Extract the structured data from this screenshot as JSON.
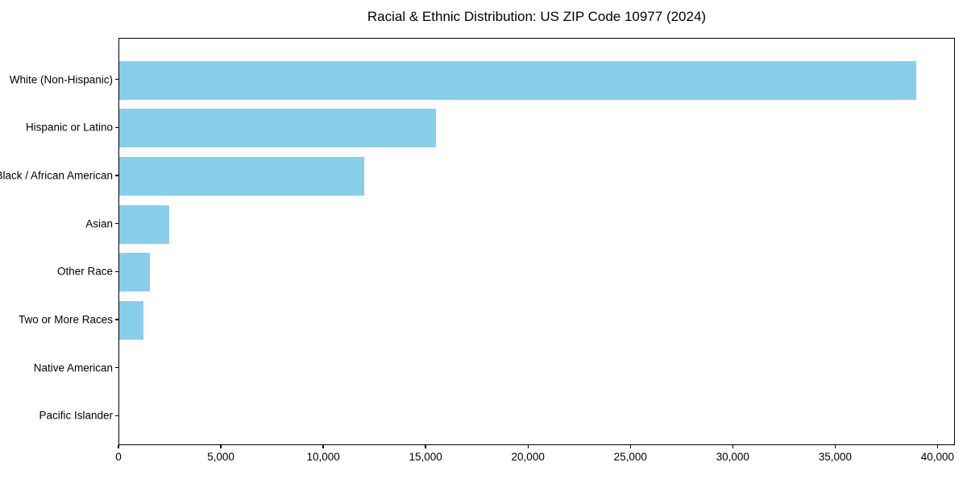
{
  "chart_data": {
    "type": "bar",
    "orientation": "horizontal",
    "title": "Racial & Ethnic Distribution: US ZIP Code 10977 (2024)",
    "categories": [
      "White (Non-Hispanic)",
      "Hispanic or Latino",
      "Black / African American",
      "Asian",
      "Other Race",
      "Two or More Races",
      "Native American",
      "Pacific Islander"
    ],
    "values": [
      39000,
      15500,
      12000,
      2450,
      1500,
      1200,
      0,
      0
    ],
    "xlabel": "",
    "ylabel": "",
    "xlim": [
      0,
      40850
    ],
    "xticks": [
      0,
      5000,
      10000,
      15000,
      20000,
      25000,
      30000,
      35000,
      40000
    ],
    "xtick_labels": [
      "0",
      "5,000",
      "10,000",
      "15,000",
      "20,000",
      "25,000",
      "30,000",
      "35,000",
      "40,000"
    ],
    "bar_color": "#87CEEB",
    "frame_color": "#000000",
    "text_color": "#000000",
    "grid": false,
    "legend": null
  }
}
